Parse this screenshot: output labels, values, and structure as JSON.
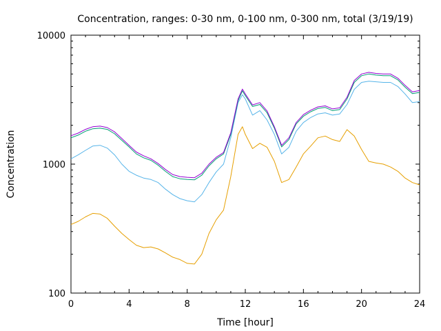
{
  "chart_data": {
    "type": "line",
    "title": "Concentration, ranges: 0-30 nm, 0-100 nm, 0-300 nm, total (3/19/19)",
    "xlabel": "Time [hour]",
    "ylabel": "Concentration",
    "xlim": [
      0,
      24
    ],
    "ylim": [
      100,
      10000
    ],
    "yscale": "log",
    "grid": false,
    "legend": "none",
    "x_ticks": [
      0,
      4,
      8,
      12,
      16,
      20,
      24
    ],
    "x_tick_labels": [
      "0",
      "4",
      "8",
      "12",
      "16",
      "20",
      "24"
    ],
    "y_ticks": [
      100,
      1000,
      10000
    ],
    "y_tick_labels": [
      "100",
      "1000",
      "10000"
    ],
    "x": [
      0,
      0.5,
      1,
      1.5,
      2,
      2.5,
      3,
      3.5,
      4,
      4.5,
      5,
      5.5,
      6,
      6.5,
      7,
      7.5,
      8,
      8.5,
      9,
      9.5,
      10,
      10.5,
      11,
      11.5,
      11.8,
      12,
      12.5,
      13,
      13.5,
      14,
      14.5,
      15,
      15.5,
      16,
      16.5,
      17,
      17.5,
      18,
      18.5,
      19,
      19.5,
      20,
      20.5,
      21,
      21.5,
      22,
      22.5,
      23,
      23.5,
      24
    ],
    "series": [
      {
        "name": "0-30 nm",
        "color": "#e69f00",
        "values": [
          340,
          360,
          390,
          415,
          410,
          380,
          330,
          290,
          260,
          235,
          225,
          228,
          220,
          205,
          190,
          182,
          170,
          168,
          200,
          290,
          370,
          440,
          800,
          1700,
          1950,
          1700,
          1320,
          1450,
          1350,
          1050,
          720,
          760,
          950,
          1200,
          1380,
          1600,
          1650,
          1550,
          1500,
          1850,
          1650,
          1300,
          1050,
          1020,
          1000,
          950,
          880,
          780,
          720,
          690
        ]
      },
      {
        "name": "0-100 nm",
        "color": "#56b4e9",
        "values": [
          1100,
          1180,
          1280,
          1380,
          1400,
          1330,
          1180,
          1000,
          880,
          820,
          780,
          760,
          720,
          640,
          580,
          540,
          520,
          510,
          580,
          720,
          870,
          1000,
          1600,
          3000,
          3450,
          3200,
          2400,
          2600,
          2200,
          1700,
          1200,
          1350,
          1800,
          2100,
          2300,
          2450,
          2500,
          2400,
          2450,
          2900,
          3800,
          4300,
          4400,
          4350,
          4300,
          4300,
          4000,
          3500,
          3000,
          3050
        ]
      },
      {
        "name": "0-300 nm",
        "color": "#009e73",
        "values": [
          1600,
          1680,
          1800,
          1880,
          1900,
          1860,
          1720,
          1530,
          1360,
          1200,
          1120,
          1070,
          980,
          880,
          800,
          770,
          760,
          755,
          820,
          970,
          1100,
          1200,
          1700,
          3100,
          3700,
          3400,
          2800,
          2900,
          2500,
          1900,
          1360,
          1550,
          2050,
          2350,
          2550,
          2700,
          2750,
          2600,
          2650,
          3200,
          4300,
          4850,
          5000,
          4900,
          4850,
          4850,
          4500,
          3950,
          3520,
          3600
        ]
      },
      {
        "name": "total",
        "color": "#9400d3",
        "values": [
          1660,
          1740,
          1860,
          1950,
          1970,
          1920,
          1780,
          1580,
          1400,
          1240,
          1160,
          1100,
          1010,
          910,
          830,
          800,
          790,
          785,
          850,
          1000,
          1130,
          1230,
          1750,
          3200,
          3820,
          3500,
          2880,
          3000,
          2580,
          1950,
          1400,
          1600,
          2100,
          2420,
          2620,
          2780,
          2830,
          2680,
          2730,
          3300,
          4450,
          5000,
          5150,
          5050,
          5000,
          5000,
          4640,
          4080,
          3630,
          3720
        ]
      }
    ]
  }
}
